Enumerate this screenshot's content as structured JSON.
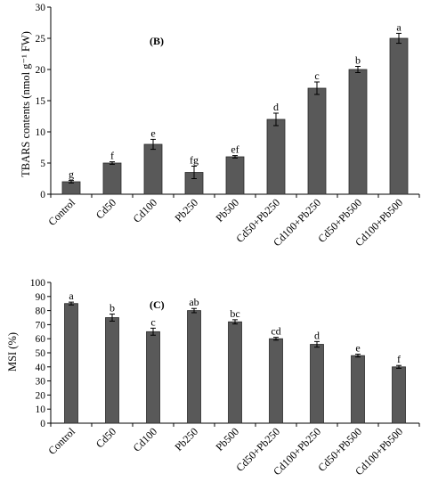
{
  "chart_data": [
    {
      "type": "bar",
      "panel_label": "(B)",
      "ylabel": "TBARS contents (nmol g⁻¹ FW)",
      "xlabel": "",
      "ylim": [
        0,
        30
      ],
      "yticks": [
        0,
        5,
        10,
        15,
        20,
        25,
        30
      ],
      "categories": [
        "Control",
        "Cd50",
        "Cd100",
        "Pb250",
        "Pb500",
        "Cd50+Pb250",
        "Cd100+Pb250",
        "Cd50+Pb500",
        "Cd100+Pb500"
      ],
      "values": [
        2.0,
        5.0,
        8.0,
        3.5,
        6.0,
        12.0,
        17.0,
        20.0,
        25.0
      ],
      "errors": [
        0.2,
        0.2,
        0.8,
        1.0,
        0.2,
        1.0,
        1.0,
        0.5,
        0.8
      ],
      "significance": [
        "g",
        "f",
        "e",
        "fg",
        "ef",
        "d",
        "c",
        "b",
        "a"
      ],
      "grid": false,
      "bar_color": "#595959"
    },
    {
      "type": "bar",
      "panel_label": "(C)",
      "ylabel": "MSI (%)",
      "xlabel": "",
      "ylim": [
        0,
        100
      ],
      "yticks": [
        0,
        10,
        20,
        30,
        40,
        50,
        60,
        70,
        80,
        90,
        100
      ],
      "categories": [
        "Control",
        "Cd50",
        "Cd100",
        "Pb250",
        "Pb500",
        "Cd50+Pb250",
        "Cd100+Pb250",
        "Cd50+Pb500",
        "Cd100+Pb500"
      ],
      "values": [
        85,
        75,
        65,
        80,
        72,
        60,
        56,
        48,
        40
      ],
      "errors": [
        1,
        2.5,
        2.5,
        1.5,
        1.5,
        1,
        2,
        1,
        1
      ],
      "significance": [
        "a",
        "b",
        "c",
        "ab",
        "bc",
        "cd",
        "d",
        "e",
        "f"
      ],
      "grid": false,
      "bar_color": "#595959"
    }
  ]
}
